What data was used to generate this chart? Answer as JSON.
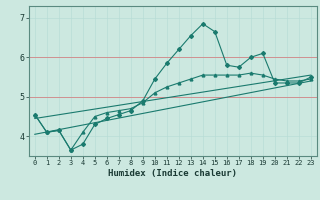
{
  "xlabel": "Humidex (Indice chaleur)",
  "background_color": "#cce8e0",
  "grid_color_minor": "#b8ddd6",
  "grid_color_red": "#d09090",
  "line_color": "#1a7a6e",
  "xlim": [
    -0.5,
    23.5
  ],
  "ylim": [
    3.5,
    7.3
  ],
  "xticks": [
    0,
    1,
    2,
    3,
    4,
    5,
    6,
    7,
    8,
    9,
    10,
    11,
    12,
    13,
    14,
    15,
    16,
    17,
    18,
    19,
    20,
    21,
    22,
    23
  ],
  "yticks": [
    4,
    5,
    6,
    7
  ],
  "red_hlines": [
    5,
    6
  ],
  "series1_x": [
    0,
    1,
    2,
    3,
    4,
    5,
    6,
    7,
    8,
    9,
    10,
    11,
    12,
    13,
    14,
    15,
    16,
    17,
    18,
    19,
    20,
    21,
    22,
    23
  ],
  "series1_y": [
    4.55,
    4.1,
    4.15,
    3.65,
    3.8,
    4.3,
    4.45,
    4.55,
    4.65,
    4.9,
    5.45,
    5.85,
    6.2,
    6.55,
    6.85,
    6.65,
    5.8,
    5.75,
    6.0,
    6.1,
    5.35,
    5.35,
    5.35,
    5.5
  ],
  "series2_x": [
    0,
    1,
    2,
    3,
    4,
    5,
    6,
    7,
    8,
    9,
    10,
    11,
    12,
    13,
    14,
    15,
    16,
    17,
    18,
    19,
    20,
    21,
    22,
    23
  ],
  "series2_y": [
    4.55,
    4.1,
    4.15,
    3.65,
    4.1,
    4.5,
    4.6,
    4.65,
    4.7,
    4.85,
    5.1,
    5.25,
    5.35,
    5.45,
    5.55,
    5.55,
    5.55,
    5.55,
    5.6,
    5.55,
    5.45,
    5.4,
    5.4,
    5.45
  ],
  "series3_x": [
    0,
    23
  ],
  "series3_y": [
    4.45,
    5.55
  ],
  "series4_x": [
    0,
    23
  ],
  "series4_y": [
    4.05,
    5.4
  ]
}
